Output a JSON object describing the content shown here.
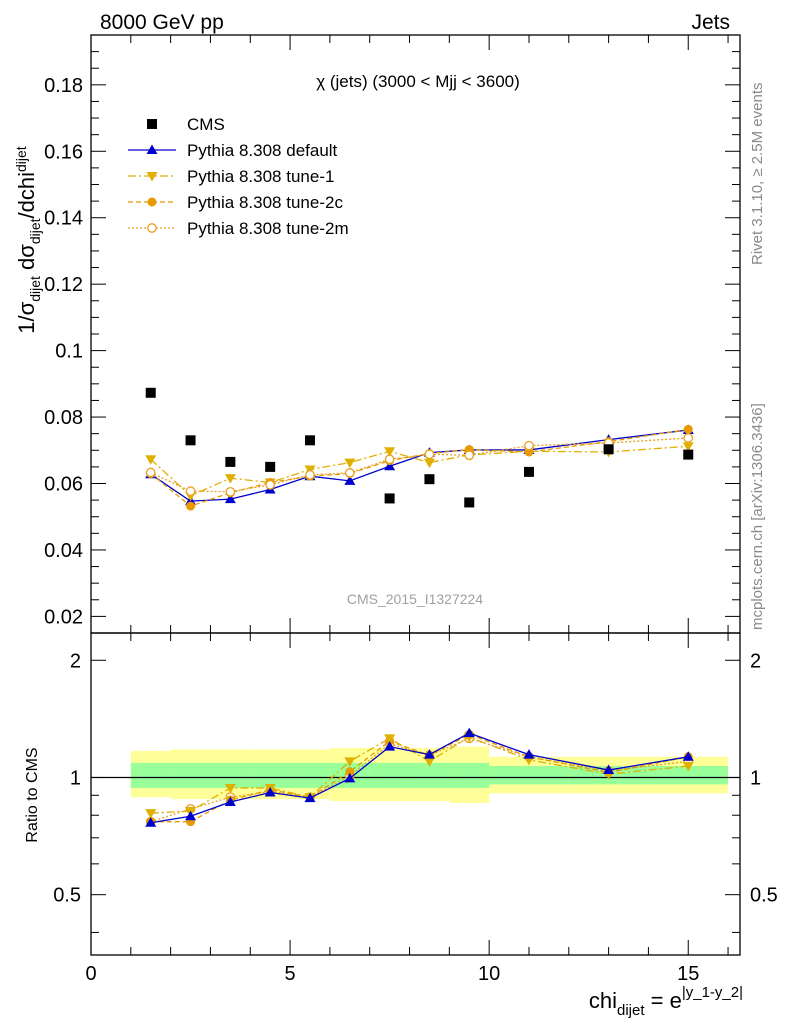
{
  "header": {
    "left": "8000 GeV pp",
    "right": "Jets"
  },
  "side": {
    "rivet": "Rivet 3.1.10, ≥ 2.5M events",
    "mcplots": "mcplots.cern.ch [arXiv:1306.3436]"
  },
  "watermark": "CMS_2015_I1327224",
  "chart_data": [
    {
      "type": "scatter",
      "panel": "main",
      "title": "χ (jets) (3000 < Mjj < 3600)",
      "ylabel": {
        "base": "1/σ",
        "sub1": "dijet",
        "mid": " dσ",
        "sub2": "dijet",
        "tail": "/dchi",
        "sub3": "dijet"
      },
      "xlim": [
        0,
        16.3
      ],
      "ylim": [
        0.015,
        0.195
      ],
      "yticks": [
        0.02,
        0.04,
        0.06,
        0.08,
        0.1,
        0.12,
        0.14,
        0.16,
        0.18
      ],
      "yticklabels": [
        "0.02",
        "0.04",
        "0.06",
        "0.08",
        "0.1",
        "0.12",
        "0.14",
        "0.16",
        "0.18"
      ],
      "x": [
        1.5,
        2.5,
        3.5,
        4.5,
        5.5,
        6.5,
        7.5,
        8.5,
        9.5,
        11,
        13,
        15
      ],
      "series": [
        {
          "name": "CMS",
          "style": "data",
          "color": "#000000",
          "values": [
            0.0873,
            0.073,
            0.0665,
            0.065,
            0.073,
            null,
            0.0555,
            0.0613,
            0.0543,
            0.0635,
            0.0703,
            0.0687
          ]
        },
        {
          "name": "Pythia 8.308 default",
          "style": "default",
          "color": "#0000cc",
          "values": [
            0.0628,
            0.0547,
            0.0553,
            0.0582,
            0.0622,
            0.0608,
            0.0652,
            0.0693,
            0.0701,
            0.0701,
            0.0732,
            0.0761
          ]
        },
        {
          "name": "Pythia 8.308 tune-1",
          "style": "tune1",
          "color": "#e0b000",
          "values": [
            0.0673,
            0.0563,
            0.0616,
            0.0603,
            0.0642,
            0.0663,
            0.0697,
            0.0663,
            0.0686,
            0.0697,
            0.0695,
            0.0712
          ]
        },
        {
          "name": "Pythia 8.308 tune-2c",
          "style": "tune2c",
          "color": "#e89a00",
          "values": [
            0.063,
            0.0532,
            0.0572,
            0.0603,
            0.0622,
            0.063,
            0.0669,
            0.069,
            0.0702,
            0.0695,
            0.0726,
            0.0763
          ]
        },
        {
          "name": "Pythia 8.308 tune-2m",
          "style": "tune2m",
          "color": "#e8a020",
          "values": [
            0.0633,
            0.0577,
            0.0575,
            0.0596,
            0.0626,
            0.0632,
            0.0673,
            0.0688,
            0.0685,
            0.0714,
            0.0722,
            0.0737
          ]
        }
      ]
    },
    {
      "type": "line",
      "panel": "ratio",
      "ylabel": "Ratio to CMS",
      "xlabel": {
        "base": "chi",
        "sub": "dijet",
        "mid": " = e",
        "sup": "|y_1-y_2|"
      },
      "scale": "log",
      "ylim": [
        0.35,
        2.35
      ],
      "yticks": [
        0.5,
        1,
        2
      ],
      "yticklabels": [
        "0.5",
        "1",
        "2"
      ],
      "xlim": [
        0,
        16.3
      ],
      "xticks": [
        0,
        5,
        10,
        15
      ],
      "xticklabels": [
        "0",
        "5",
        "10",
        "15"
      ],
      "x": [
        1.5,
        2.5,
        3.5,
        4.5,
        5.5,
        6.5,
        7.5,
        8.5,
        9.5,
        11,
        13,
        15
      ],
      "bins": [
        [
          1,
          2
        ],
        [
          2,
          3
        ],
        [
          3,
          4
        ],
        [
          4,
          5
        ],
        [
          5,
          6
        ],
        [
          6,
          7
        ],
        [
          7,
          8
        ],
        [
          8,
          9
        ],
        [
          9,
          10
        ],
        [
          10,
          12
        ],
        [
          12,
          14
        ],
        [
          14,
          16
        ]
      ],
      "band_stat": [
        [
          0.94,
          1.09
        ],
        [
          0.94,
          1.09
        ],
        [
          0.94,
          1.09
        ],
        [
          0.94,
          1.09
        ],
        [
          0.94,
          1.09
        ],
        [
          0.94,
          1.09
        ],
        [
          0.94,
          1.09
        ],
        [
          0.94,
          1.09
        ],
        [
          0.94,
          1.09
        ],
        [
          0.96,
          1.07
        ],
        [
          0.96,
          1.07
        ],
        [
          0.96,
          1.07
        ]
      ],
      "band_total": [
        [
          0.89,
          1.17
        ],
        [
          0.88,
          1.18
        ],
        [
          0.88,
          1.18
        ],
        [
          0.88,
          1.18
        ],
        [
          0.88,
          1.18
        ],
        [
          0.87,
          1.19
        ],
        [
          0.87,
          1.19
        ],
        [
          0.87,
          1.19
        ],
        [
          0.86,
          1.2
        ],
        [
          0.91,
          1.13
        ],
        [
          0.91,
          1.13
        ],
        [
          0.91,
          1.13
        ]
      ],
      "series": [
        {
          "name": "Pythia 8.308 default",
          "style": "default",
          "color": "#0000cc",
          "values": [
            0.765,
            0.795,
            0.865,
            0.915,
            0.885,
            0.995,
            1.2,
            1.145,
            1.3,
            1.145,
            1.045,
            1.13
          ]
        },
        {
          "name": "Pythia 8.308 tune-1",
          "style": "tune1",
          "color": "#e0b000",
          "values": [
            0.81,
            0.82,
            0.94,
            0.94,
            0.89,
            1.1,
            1.26,
            1.1,
            1.27,
            1.11,
            1.02,
            1.07
          ]
        },
        {
          "name": "Pythia 8.308 tune-2c",
          "style": "tune2c",
          "color": "#e89a00",
          "values": [
            0.77,
            0.77,
            0.875,
            0.93,
            0.89,
            1.035,
            1.24,
            1.14,
            1.29,
            1.13,
            1.03,
            1.13
          ]
        },
        {
          "name": "Pythia 8.308 tune-2m",
          "style": "tune2m",
          "color": "#e8a020",
          "values": [
            0.77,
            0.83,
            0.89,
            0.92,
            0.89,
            1.01,
            1.22,
            1.14,
            1.26,
            1.13,
            1.04,
            1.1
          ]
        }
      ]
    }
  ]
}
